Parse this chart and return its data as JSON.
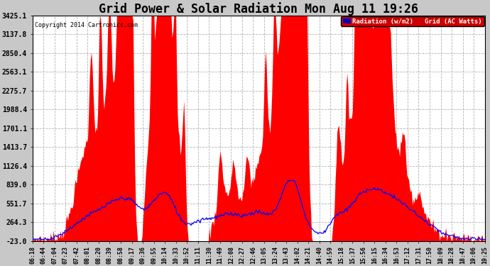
{
  "title": "Grid Power & Solar Radiation Mon Aug 11 19:26",
  "copyright": "Copyright 2014 Cartronics.com",
  "background_color": "#c8c8c8",
  "plot_bg_color": "#ffffff",
  "grid_color": "#aaaaaa",
  "ylim": [
    -23.0,
    3425.1
  ],
  "yticks": [
    -23.0,
    264.3,
    551.7,
    839.0,
    1126.4,
    1413.7,
    1701.1,
    1988.4,
    2275.7,
    2563.1,
    2850.4,
    3137.8,
    3425.1
  ],
  "ytick_labels": [
    "-23.0",
    "264.3",
    "551.7",
    "839.0",
    "1126.4",
    "1413.7",
    "1701.1",
    "1988.4",
    "2275.7",
    "2563.1",
    "2850.4",
    "3137.8",
    "3425.1"
  ],
  "xlabel_fontsize": 6.0,
  "ylabel_fontsize": 7.0,
  "title_fontsize": 12,
  "legend_blue_label": "Radiation (w/m2)",
  "legend_red_label": "Grid (AC Watts)",
  "legend_blue_bg": "#0000bb",
  "legend_red_bg": "#cc0000",
  "xtick_labels": [
    "06:18",
    "06:44",
    "07:04",
    "07:23",
    "07:42",
    "08:01",
    "08:20",
    "08:39",
    "08:58",
    "09:17",
    "09:36",
    "09:55",
    "10:14",
    "10:33",
    "10:52",
    "11:11",
    "11:30",
    "11:49",
    "12:08",
    "12:27",
    "12:46",
    "13:05",
    "13:24",
    "13:43",
    "14:02",
    "14:21",
    "14:40",
    "14:59",
    "15:18",
    "15:37",
    "15:56",
    "16:15",
    "16:34",
    "16:53",
    "17:12",
    "17:31",
    "17:50",
    "18:09",
    "18:28",
    "18:47",
    "19:06",
    "19:25"
  ]
}
